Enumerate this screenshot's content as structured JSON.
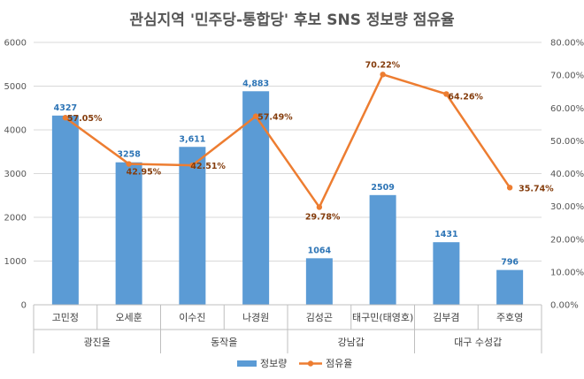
{
  "chart_data": {
    "type": "bar+line",
    "title": "관심지역 '민주당-통합당' 후보 SNS 정보량 점유율",
    "categories": [
      "고민정",
      "오세훈",
      "이수진",
      "나경원",
      "김성곤",
      "태구민(태영호)",
      "김부겸",
      "주호영"
    ],
    "groups": [
      {
        "label": "광진을",
        "members": [
          0,
          1
        ]
      },
      {
        "label": "동작을",
        "members": [
          2,
          3
        ]
      },
      {
        "label": "강남갑",
        "members": [
          4,
          5
        ]
      },
      {
        "label": "대구 수성갑",
        "members": [
          6,
          7
        ]
      }
    ],
    "series": [
      {
        "name": "정보량",
        "type": "bar",
        "axis": "left",
        "color": "#5B9BD5",
        "values": [
          4327,
          3258,
          3611,
          4883,
          1064,
          2509,
          1431,
          796
        ],
        "labels": [
          "4327",
          "3258",
          "3,611",
          "4,883",
          "1064",
          "2509",
          "1431",
          "796"
        ]
      },
      {
        "name": "점유율",
        "type": "line",
        "axis": "right",
        "color": "#ED7D31",
        "values": [
          57.05,
          42.95,
          42.51,
          57.49,
          29.78,
          70.22,
          64.26,
          35.74
        ],
        "labels": [
          "57.05%",
          "42.95%",
          "42.51%",
          "57.49%",
          "29.78%",
          "70.22%",
          "64.26%",
          "35.74%"
        ]
      }
    ],
    "left_axis": {
      "min": 0,
      "max": 6000,
      "ticks": [
        "0",
        "1000",
        "2000",
        "3000",
        "4000",
        "5000",
        "6000"
      ]
    },
    "right_axis": {
      "min": 0,
      "max": 80,
      "ticks": [
        "0.00%",
        "10.00%",
        "20.00%",
        "30.00%",
        "40.00%",
        "50.00%",
        "60.00%",
        "70.00%",
        "80.00%"
      ]
    },
    "legend": {
      "position": "bottom",
      "entries": [
        "정보량",
        "점유율"
      ]
    },
    "grid": true
  }
}
